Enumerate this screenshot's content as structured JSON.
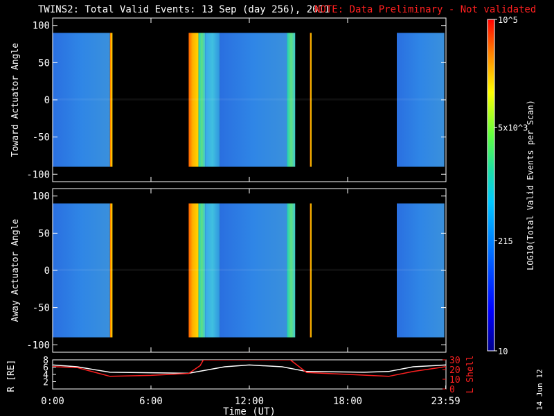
{
  "title": "TWINS2: Total Valid Events: 13 Sep (day 256), 2011",
  "note": "NOTE: Data Preliminary - Not validated",
  "colors": {
    "note": "#ff2020",
    "background": "#000000",
    "axes": "#ffffff",
    "r_line": "#ffffff",
    "lshell_line": "#ff2020"
  },
  "date_stamp": "14 Jun 12",
  "chart_data": [
    {
      "type": "heatmap",
      "panel": "toward",
      "ylabel": "Toward Actuator Angle",
      "ylim": [
        -110,
        110
      ],
      "yticks": [
        100,
        50,
        0,
        -50,
        -100
      ],
      "xlim": [
        0,
        24
      ],
      "data_extent": [
        -90,
        90
      ],
      "segments": [
        {
          "start": 0.0,
          "end": 3.5,
          "level": "low"
        },
        {
          "start": 3.5,
          "end": 3.65,
          "level": "high"
        },
        {
          "start": 8.3,
          "end": 8.9,
          "level": "high"
        },
        {
          "start": 8.9,
          "end": 9.3,
          "level": "mid"
        },
        {
          "start": 9.3,
          "end": 10.2,
          "level": "low-mid"
        },
        {
          "start": 10.2,
          "end": 14.3,
          "level": "low"
        },
        {
          "start": 14.3,
          "end": 14.8,
          "level": "mid"
        },
        {
          "start": 15.7,
          "end": 15.8,
          "level": "high"
        },
        {
          "start": 21.0,
          "end": 23.9,
          "level": "low"
        }
      ]
    },
    {
      "type": "heatmap",
      "panel": "away",
      "ylabel": "Away Actuator Angle",
      "ylim": [
        -110,
        110
      ],
      "yticks": [
        100,
        50,
        0,
        -50,
        -100
      ],
      "xlim": [
        0,
        24
      ],
      "data_extent": [
        -90,
        90
      ],
      "segments": [
        {
          "start": 0.0,
          "end": 3.5,
          "level": "low"
        },
        {
          "start": 3.5,
          "end": 3.65,
          "level": "high"
        },
        {
          "start": 8.3,
          "end": 8.9,
          "level": "high"
        },
        {
          "start": 8.9,
          "end": 9.3,
          "level": "mid"
        },
        {
          "start": 9.3,
          "end": 10.2,
          "level": "low-mid"
        },
        {
          "start": 10.2,
          "end": 14.3,
          "level": "low"
        },
        {
          "start": 14.3,
          "end": 14.8,
          "level": "mid"
        },
        {
          "start": 15.7,
          "end": 15.8,
          "level": "high"
        },
        {
          "start": 21.0,
          "end": 23.9,
          "level": "low"
        }
      ]
    },
    {
      "type": "line",
      "panel": "ephemeris",
      "xlabel": "Time (UT)",
      "xticks": [
        "0:00",
        "6:00",
        "12:00",
        "18:00",
        "23:59"
      ],
      "xlim": [
        0,
        24
      ],
      "ylabel_left": "R [RE]",
      "yticks_left": [
        8,
        6,
        4,
        2
      ],
      "ylim_left": [
        0,
        8
      ],
      "ylabel_right": "L Shell",
      "yticks_right": [
        30,
        20,
        10,
        0
      ],
      "ylim_right": [
        0,
        30
      ],
      "series": [
        {
          "axis": "left",
          "x": [
            0,
            1.5,
            3.5,
            8.3,
            10.5,
            12,
            14,
            15.5,
            19,
            20.5,
            22,
            24
          ],
          "values": [
            6.6,
            6.1,
            4.6,
            4.3,
            6.1,
            6.6,
            6.1,
            4.8,
            4.6,
            4.8,
            6.1,
            6.6
          ]
        },
        {
          "axis": "right",
          "x": [
            0,
            1.5,
            3.5,
            6,
            8.3,
            9.0,
            9.2,
            14.5,
            15.5,
            18,
            20.5,
            22,
            24
          ],
          "values": [
            23,
            22,
            13,
            14,
            16,
            24,
            30,
            30,
            17,
            15,
            13,
            18,
            23
          ]
        }
      ]
    },
    {
      "type": "colorbar",
      "label": "LOG10(Total Valid Events per Scan)",
      "scale": "log",
      "range": [
        10,
        100000
      ],
      "tick_labels": [
        "10^5",
        "5x10^3",
        "215",
        "10"
      ]
    }
  ]
}
